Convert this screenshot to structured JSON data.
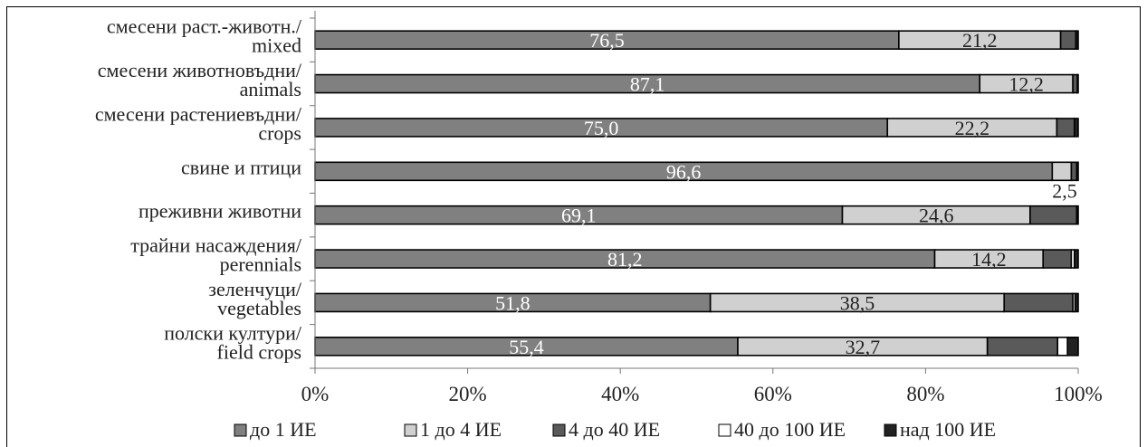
{
  "chart_data": {
    "type": "bar",
    "orientation": "horizontal",
    "stacked": "percent",
    "categories": [
      [
        "смесени раст.-животн./",
        "mixed"
      ],
      [
        "смесени животновъдни/",
        "animals"
      ],
      [
        "смесени растениевъдни/",
        "crops"
      ],
      [
        "свине и птици"
      ],
      [
        "преживни животни"
      ],
      [
        "трайни насаждения/",
        "perennials"
      ],
      [
        "зеленчуци/",
        "vegetables"
      ],
      [
        "полски култури/",
        "field crops"
      ]
    ],
    "series": [
      {
        "name": "до 1 ИЕ",
        "color": "#808080",
        "values": [
          76.5,
          87.1,
          75.0,
          96.6,
          69.1,
          81.2,
          51.8,
          55.4
        ]
      },
      {
        "name": "1 до 4 ИЕ",
        "color": "#d0d0d0",
        "values": [
          21.2,
          12.2,
          22.2,
          2.5,
          24.6,
          14.2,
          38.5,
          32.7
        ]
      },
      {
        "name": "4 до 40 ИЕ",
        "color": "#5a5a5a",
        "values": [
          2.0,
          0.6,
          2.3,
          0.7,
          6.1,
          3.7,
          9.0,
          9.2
        ]
      },
      {
        "name": "40 до 100 ИЕ",
        "color": "#ffffff",
        "values": [
          0.0,
          0.0,
          0.0,
          0.0,
          0.0,
          0.4,
          0.3,
          1.3
        ]
      },
      {
        "name": "над 100 ИЕ",
        "color": "#222222",
        "values": [
          0.3,
          0.1,
          0.5,
          0.2,
          0.2,
          0.5,
          0.4,
          1.4
        ]
      }
    ],
    "data_labels": [
      {
        "row": 0,
        "series": 0,
        "text": "76,5"
      },
      {
        "row": 0,
        "series": 1,
        "text": "21,2"
      },
      {
        "row": 1,
        "series": 0,
        "text": "87,1"
      },
      {
        "row": 1,
        "series": 1,
        "text": "12,2"
      },
      {
        "row": 2,
        "series": 0,
        "text": "75,0"
      },
      {
        "row": 2,
        "series": 1,
        "text": "22,2"
      },
      {
        "row": 3,
        "series": 0,
        "text": "96,6"
      },
      {
        "row": 3,
        "series": 1,
        "text": "2,5",
        "position": "below"
      },
      {
        "row": 4,
        "series": 0,
        "text": "69,1"
      },
      {
        "row": 4,
        "series": 1,
        "text": "24,6"
      },
      {
        "row": 5,
        "series": 0,
        "text": "81,2"
      },
      {
        "row": 5,
        "series": 1,
        "text": "14,2"
      },
      {
        "row": 6,
        "series": 0,
        "text": "51,8"
      },
      {
        "row": 6,
        "series": 1,
        "text": "38,5"
      },
      {
        "row": 7,
        "series": 0,
        "text": "55,4"
      },
      {
        "row": 7,
        "series": 1,
        "text": "32,7"
      }
    ],
    "x_ticks": [
      "0%",
      "20%",
      "40%",
      "60%",
      "80%",
      "100%"
    ],
    "xlim": [
      0,
      100
    ],
    "grid": false,
    "legend_position": "bottom"
  }
}
